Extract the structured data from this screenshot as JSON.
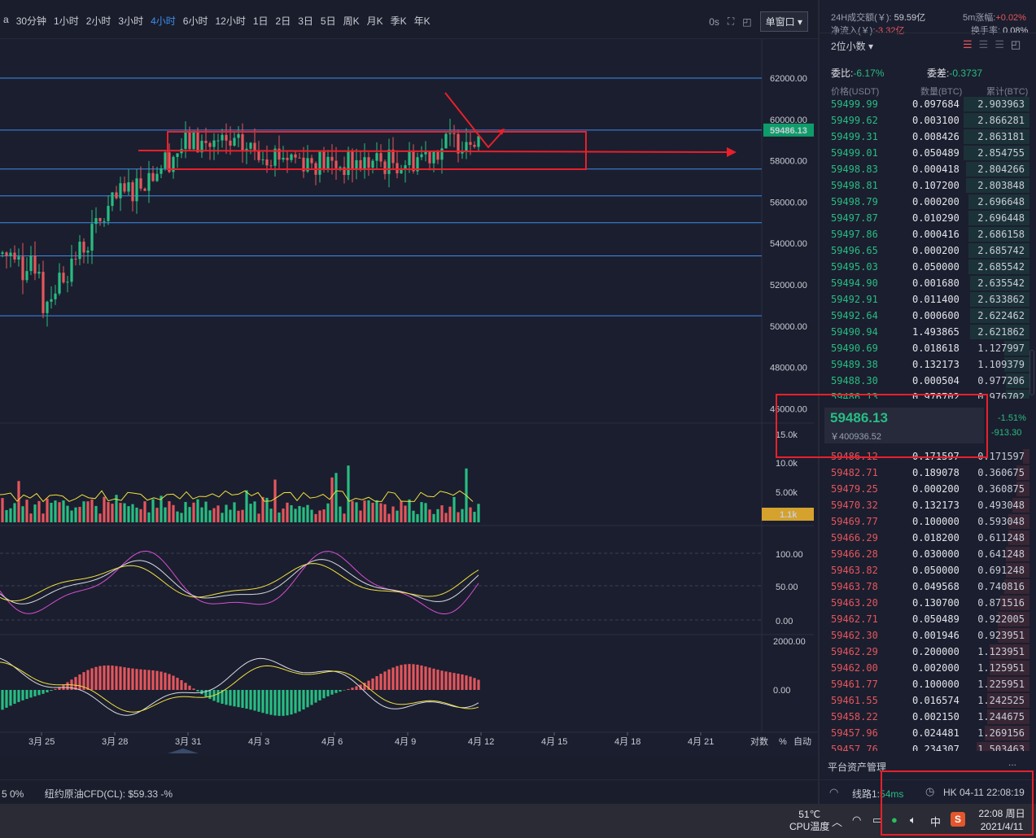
{
  "toolbar": {
    "intervals": [
      "a",
      "30分钟",
      "1小时",
      "2小时",
      "3小时",
      "4小时",
      "6小时",
      "12小时",
      "1日",
      "2日",
      "3日",
      "5日",
      "周K",
      "月K",
      "季K",
      "年K"
    ],
    "active_interval": "4小时",
    "countdown": "0s",
    "window_mode": "单窗口"
  },
  "price_axis": {
    "ticks": [
      "62000.00",
      "60000.00",
      "58000.00",
      "56000.00",
      "54000.00",
      "52000.00",
      "50000.00",
      "48000.00",
      "46000.00"
    ],
    "current_price_tag": "59486.13"
  },
  "volume_axis": {
    "ticks": [
      "15.0k",
      "10.0k",
      "5.00k"
    ],
    "current_tag": "1.1k"
  },
  "kdj_axis": {
    "ticks": [
      "100.00",
      "50.00",
      "0.00"
    ]
  },
  "macd_axis": {
    "ticks": [
      "2000.00",
      "0.00"
    ]
  },
  "date_axis": {
    "ticks": [
      "3月 25",
      "3月 28",
      "3月 31",
      "4月 3",
      "4月 6",
      "4月 9",
      "4月 12",
      "4月 15",
      "4月 18",
      "4月 21"
    ]
  },
  "chart_footer": {
    "log_label": "对数",
    "pct_label": "%",
    "auto_label": "自动"
  },
  "ticker": {
    "left_fragment": "5 0%",
    "item": "纽约原油CFD(CL):  $59.33  -%"
  },
  "right_panel": {
    "stats": {
      "turnover_label": "24H成交额(￥):",
      "turnover_value": "59.59亿",
      "change5m_label": "5m涨幅:",
      "change5m_value": "+0.02%",
      "netflow_label": "净流入(￥):",
      "netflow_value": "-3.32亿",
      "turnover_rate_label": "换手率:",
      "turnover_rate_value": "0.08%"
    },
    "decimals_select": "2位小数",
    "ratio_label": "委比:",
    "ratio_value": "-6.17%",
    "diff_label": "委差:",
    "diff_value": "-0.3737",
    "headers": {
      "price": "价格(USDT)",
      "qty": "数量(BTC)",
      "cum": "累计(BTC)"
    },
    "asks": [
      {
        "price": "59499.99",
        "qty": "0.097684",
        "cum": "2.903963",
        "depth": 0.31
      },
      {
        "price": "59499.62",
        "qty": "0.003100",
        "cum": "2.866281",
        "depth": 0.31
      },
      {
        "price": "59499.31",
        "qty": "0.008426",
        "cum": "2.863181",
        "depth": 0.31
      },
      {
        "price": "59499.01",
        "qty": "0.050489",
        "cum": "2.854755",
        "depth": 0.31
      },
      {
        "price": "59498.83",
        "qty": "0.000418",
        "cum": "2.804266",
        "depth": 0.3
      },
      {
        "price": "59498.81",
        "qty": "0.107200",
        "cum": "2.803848",
        "depth": 0.3
      },
      {
        "price": "59498.79",
        "qty": "0.000200",
        "cum": "2.696648",
        "depth": 0.29
      },
      {
        "price": "59497.87",
        "qty": "0.010290",
        "cum": "2.696448",
        "depth": 0.29
      },
      {
        "price": "59497.86",
        "qty": "0.000416",
        "cum": "2.686158",
        "depth": 0.29
      },
      {
        "price": "59496.65",
        "qty": "0.000200",
        "cum": "2.685742",
        "depth": 0.29
      },
      {
        "price": "59495.03",
        "qty": "0.050000",
        "cum": "2.685542",
        "depth": 0.29
      },
      {
        "price": "59494.90",
        "qty": "0.001680",
        "cum": "2.635542",
        "depth": 0.28
      },
      {
        "price": "59492.91",
        "qty": "0.011400",
        "cum": "2.633862",
        "depth": 0.28
      },
      {
        "price": "59492.64",
        "qty": "0.000600",
        "cum": "2.622462",
        "depth": 0.28
      },
      {
        "price": "59490.94",
        "qty": "1.493865",
        "cum": "2.621862",
        "depth": 0.28
      },
      {
        "price": "59490.69",
        "qty": "0.018618",
        "cum": "1.127997",
        "depth": 0.12
      },
      {
        "price": "59489.38",
        "qty": "0.132173",
        "cum": "1.109379",
        "depth": 0.12
      },
      {
        "price": "59488.30",
        "qty": "0.000504",
        "cum": "0.977206",
        "depth": 0.11
      },
      {
        "price": "59486.13",
        "qty": "0.976702",
        "cum": "0.976702",
        "depth": 0.11
      }
    ],
    "current": {
      "price": "59486.13",
      "cny": "￥400936.52",
      "pct": "-1.51%",
      "diff": "-913.30"
    },
    "bids": [
      {
        "price": "59486.12",
        "qty": "0.171597",
        "cum": "0.171597",
        "depth": 0.03
      },
      {
        "price": "59482.71",
        "qty": "0.189078",
        "cum": "0.360675",
        "depth": 0.06
      },
      {
        "price": "59479.25",
        "qty": "0.000200",
        "cum": "0.360875",
        "depth": 0.06
      },
      {
        "price": "59470.32",
        "qty": "0.132173",
        "cum": "0.493048",
        "depth": 0.08
      },
      {
        "price": "59469.77",
        "qty": "0.100000",
        "cum": "0.593048",
        "depth": 0.1
      },
      {
        "price": "59466.29",
        "qty": "0.018200",
        "cum": "0.611248",
        "depth": 0.1
      },
      {
        "price": "59466.28",
        "qty": "0.030000",
        "cum": "0.641248",
        "depth": 0.11
      },
      {
        "price": "59463.82",
        "qty": "0.050000",
        "cum": "0.691248",
        "depth": 0.11
      },
      {
        "price": "59463.78",
        "qty": "0.049568",
        "cum": "0.740816",
        "depth": 0.12
      },
      {
        "price": "59463.20",
        "qty": "0.130700",
        "cum": "0.871516",
        "depth": 0.14
      },
      {
        "price": "59462.71",
        "qty": "0.050489",
        "cum": "0.922005",
        "depth": 0.15
      },
      {
        "price": "59462.30",
        "qty": "0.001946",
        "cum": "0.923951",
        "depth": 0.15
      },
      {
        "price": "59462.29",
        "qty": "0.200000",
        "cum": "1.123951",
        "depth": 0.19
      },
      {
        "price": "59462.00",
        "qty": "0.002000",
        "cum": "1.125951",
        "depth": 0.19
      },
      {
        "price": "59461.77",
        "qty": "0.100000",
        "cum": "1.225951",
        "depth": 0.2
      },
      {
        "price": "59461.55",
        "qty": "0.016574",
        "cum": "1.242525",
        "depth": 0.2
      },
      {
        "price": "59458.22",
        "qty": "0.002150",
        "cum": "1.244675",
        "depth": 0.2
      },
      {
        "price": "59457.96",
        "qty": "0.024481",
        "cum": "1.269156",
        "depth": 0.21
      },
      {
        "price": "59457.76",
        "qty": "0.234307",
        "cum": "1.503463",
        "depth": 0.25
      }
    ],
    "asset_mgmt": "平台资产管理",
    "more": "..."
  },
  "status": {
    "line_label": "线路1:",
    "latency": "54ms",
    "clock": "HK 04-11 22:08:19"
  },
  "taskbar": {
    "temp": "51℃",
    "temp_label": "CPU温度",
    "ime": "中",
    "time": "22:08 周日",
    "date": "2021/4/11"
  },
  "colors": {
    "up": "#27bd83",
    "down": "#e4565d",
    "accent": "#3d8cf0",
    "annotation": "#e8202a",
    "volume_tag": "#d4a22d"
  },
  "chart_data": {
    "type": "candlestick",
    "note_free": true,
    "price_range": [
      45000,
      63000
    ],
    "support_resistance_lines": [
      62000,
      59486.13,
      57600,
      56300,
      55000,
      53400,
      50500
    ],
    "ohlc_samples": [
      {
        "date": "3月 25",
        "open": 52000,
        "high": 53500,
        "low": 50500,
        "close": 51000
      },
      {
        "date": "3月 28",
        "open": 55400,
        "high": 56800,
        "low": 54600,
        "close": 56000
      },
      {
        "date": "3月 31",
        "open": 57500,
        "high": 59500,
        "low": 56600,
        "close": 58900
      },
      {
        "date": "4月 3",
        "open": 59000,
        "high": 60200,
        "low": 57800,
        "close": 58500
      },
      {
        "date": "4月 6",
        "open": 58200,
        "high": 59200,
        "low": 56500,
        "close": 57800
      },
      {
        "date": "4月 9",
        "open": 56500,
        "high": 58200,
        "low": 55700,
        "close": 58000
      },
      {
        "date": "4月 12",
        "open": 60000,
        "high": 61200,
        "low": 58800,
        "close": 59486.13
      }
    ]
  }
}
